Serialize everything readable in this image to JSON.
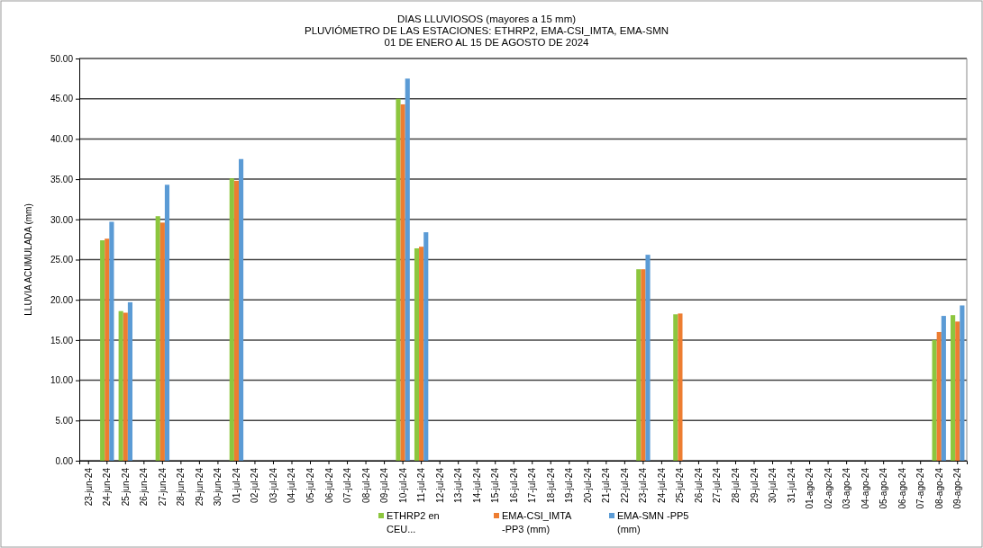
{
  "chart_data": {
    "type": "bar",
    "title": "DIAS LLUVIOSOS (mayores a 15 mm)",
    "subtitle": "PLUVIÓMETRO DE LAS ESTACIONES: ETHRP2, EMA-CSI_IMTA, EMA-SMN\n01 DE ENERO AL 15 DE AGOSTO DE 2024",
    "ylabel": "LLUVIA ACUMULADA (mm)",
    "categories": [
      "23-jun-24",
      "24-jun-24",
      "25-jun-24",
      "26-jun-24",
      "27-jun-24",
      "28-jun-24",
      "29-jun-24",
      "30-jun-24",
      "01-jul-24",
      "02-jul-24",
      "03-jul-24",
      "04-jul-24",
      "05-jul-24",
      "06-jul-24",
      "07-jul-24",
      "08-jul-24",
      "09-jul-24",
      "10-jul-24",
      "11-jul-24",
      "12-jul-24",
      "13-jul-24",
      "14-jul-24",
      "15-jul-24",
      "16-jul-24",
      "17-jul-24",
      "18-jul-24",
      "19-jul-24",
      "20-jul-24",
      "21-jul-24",
      "22-jul-24",
      "23-jul-24",
      "24-jul-24",
      "25-jul-24",
      "26-jul-24",
      "27-jul-24",
      "28-jul-24",
      "29-jul-24",
      "30-jul-24",
      "31-jul-24",
      "01-ago-24",
      "02-ago-24",
      "03-ago-24",
      "04-ago-24",
      "05-ago-24",
      "06-ago-24",
      "07-ago-24",
      "08-ago-24",
      "09-ago-24"
    ],
    "series": [
      {
        "name": "ETHRP2 en CEU...",
        "color": "#8cc63e",
        "values": [
          null,
          27.4,
          18.6,
          null,
          30.4,
          null,
          null,
          null,
          35.1,
          null,
          null,
          null,
          null,
          null,
          null,
          null,
          null,
          45.0,
          26.4,
          null,
          null,
          null,
          null,
          null,
          null,
          null,
          null,
          null,
          null,
          null,
          23.8,
          null,
          18.2,
          null,
          null,
          null,
          null,
          null,
          null,
          null,
          null,
          null,
          null,
          null,
          null,
          null,
          15.0,
          18.1
        ]
      },
      {
        "name": "EMA-CSI_IMTA -PP3 (mm)",
        "color": "#ed7d31",
        "values": [
          null,
          27.6,
          18.4,
          null,
          29.6,
          null,
          null,
          null,
          34.8,
          null,
          null,
          null,
          null,
          null,
          null,
          null,
          null,
          44.3,
          26.6,
          null,
          null,
          null,
          null,
          null,
          null,
          null,
          null,
          null,
          null,
          null,
          23.8,
          null,
          18.3,
          null,
          null,
          null,
          null,
          null,
          null,
          null,
          null,
          null,
          null,
          null,
          null,
          null,
          16.0,
          17.3
        ]
      },
      {
        "name": "EMA-SMN -PP5 (mm)",
        "color": "#5b9bd5",
        "values": [
          null,
          29.7,
          19.7,
          null,
          34.3,
          null,
          null,
          null,
          37.5,
          null,
          null,
          null,
          null,
          null,
          null,
          null,
          null,
          47.5,
          28.4,
          null,
          null,
          null,
          null,
          null,
          null,
          null,
          null,
          null,
          null,
          null,
          25.6,
          null,
          null,
          null,
          null,
          null,
          null,
          null,
          null,
          null,
          null,
          null,
          null,
          null,
          null,
          null,
          18.0,
          19.3
        ]
      }
    ],
    "ylim": [
      0,
      50
    ],
    "yticks": [
      {
        "value": 0,
        "label": "0.00"
      },
      {
        "value": 5,
        "label": "5.00"
      },
      {
        "value": 10,
        "label": "10.00"
      },
      {
        "value": 15,
        "label": "15.00"
      },
      {
        "value": 20,
        "label": "20.00"
      },
      {
        "value": 25,
        "label": "25.00"
      },
      {
        "value": 30,
        "label": "30.00"
      },
      {
        "value": 35,
        "label": "35.00"
      },
      {
        "value": 40,
        "label": "40.00"
      },
      {
        "value": 45,
        "label": "45.00"
      },
      {
        "value": 50,
        "label": "50.00"
      }
    ],
    "grid": "y",
    "legend": "bottom"
  }
}
